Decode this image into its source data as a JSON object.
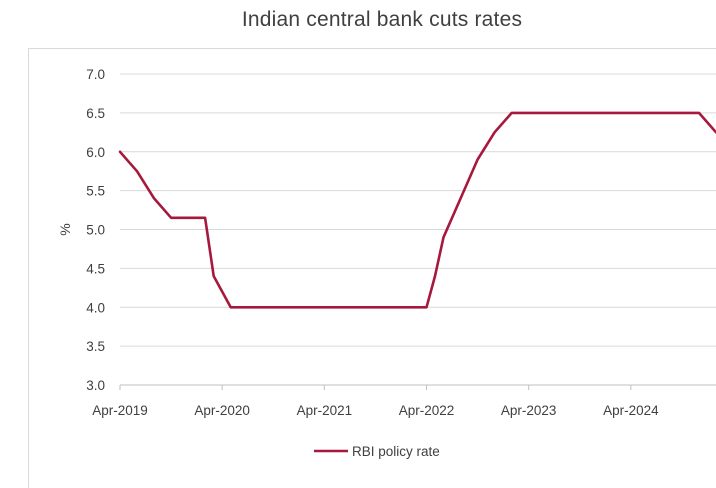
{
  "chart_data": {
    "type": "line",
    "title": "Indian central bank cuts rates",
    "xlabel": "",
    "ylabel": "%",
    "x_ticks": [
      "Apr-2019",
      "Apr-2020",
      "Apr-2021",
      "Apr-2022",
      "Apr-2023",
      "Apr-2024"
    ],
    "y_ticks": [
      "3.0",
      "3.5",
      "4.0",
      "4.5",
      "5.0",
      "5.5",
      "6.0",
      "6.5",
      "7.0"
    ],
    "ylim": [
      3.0,
      7.0
    ],
    "xlim": [
      "2019-04",
      "2025-02"
    ],
    "grid": "horizontal",
    "legend": "bottom",
    "color": "#a6193c",
    "series": [
      {
        "name": "RBI policy rate",
        "points": [
          [
            "2019-04",
            6.0
          ],
          [
            "2019-06",
            5.75
          ],
          [
            "2019-08",
            5.4
          ],
          [
            "2019-10",
            5.15
          ],
          [
            "2019-12",
            5.15
          ],
          [
            "2020-02",
            5.15
          ],
          [
            "2020-03",
            4.4
          ],
          [
            "2020-05",
            4.0
          ],
          [
            "2020-08",
            4.0
          ],
          [
            "2021-04",
            4.0
          ],
          [
            "2021-08",
            4.0
          ],
          [
            "2021-12",
            4.0
          ],
          [
            "2022-04",
            4.0
          ],
          [
            "2022-05",
            4.4
          ],
          [
            "2022-06",
            4.9
          ],
          [
            "2022-08",
            5.4
          ],
          [
            "2022-10",
            5.9
          ],
          [
            "2022-12",
            6.25
          ],
          [
            "2023-02",
            6.5
          ],
          [
            "2023-06",
            6.5
          ],
          [
            "2024-01",
            6.5
          ],
          [
            "2024-06",
            6.5
          ],
          [
            "2024-12",
            6.5
          ],
          [
            "2025-02",
            6.25
          ]
        ]
      }
    ]
  }
}
